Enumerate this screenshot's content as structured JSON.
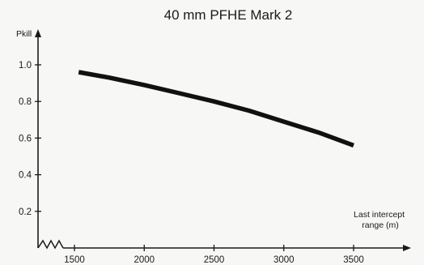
{
  "chart_data": {
    "type": "line",
    "title": "40 mm PFHE Mark 2",
    "ylabel": "Pkill",
    "xlabel": "Last intercept range (m)",
    "xlabel_lines": [
      "Last intercept",
      "range (m)"
    ],
    "xlim": [
      1500,
      3500
    ],
    "ylim": [
      0,
      1.0
    ],
    "x_ticks": [
      1500,
      2000,
      2500,
      3000,
      3500
    ],
    "x_tick_labels": [
      "1500",
      "2000",
      "2500",
      "3000",
      "3500"
    ],
    "y_ticks": [
      0.2,
      0.4,
      0.6,
      0.8,
      1.0
    ],
    "y_tick_labels": [
      "0.2",
      "0.4",
      "0.6",
      "0.8",
      "1.0"
    ],
    "x_axis_break": true,
    "grid": false,
    "series": [
      {
        "x": [
          1530,
          1750,
          2000,
          2250,
          2500,
          2750,
          3000,
          3250,
          3500
        ],
        "y": [
          0.96,
          0.93,
          0.89,
          0.845,
          0.8,
          0.75,
          0.69,
          0.63,
          0.56
        ],
        "color": "#111111"
      }
    ]
  }
}
